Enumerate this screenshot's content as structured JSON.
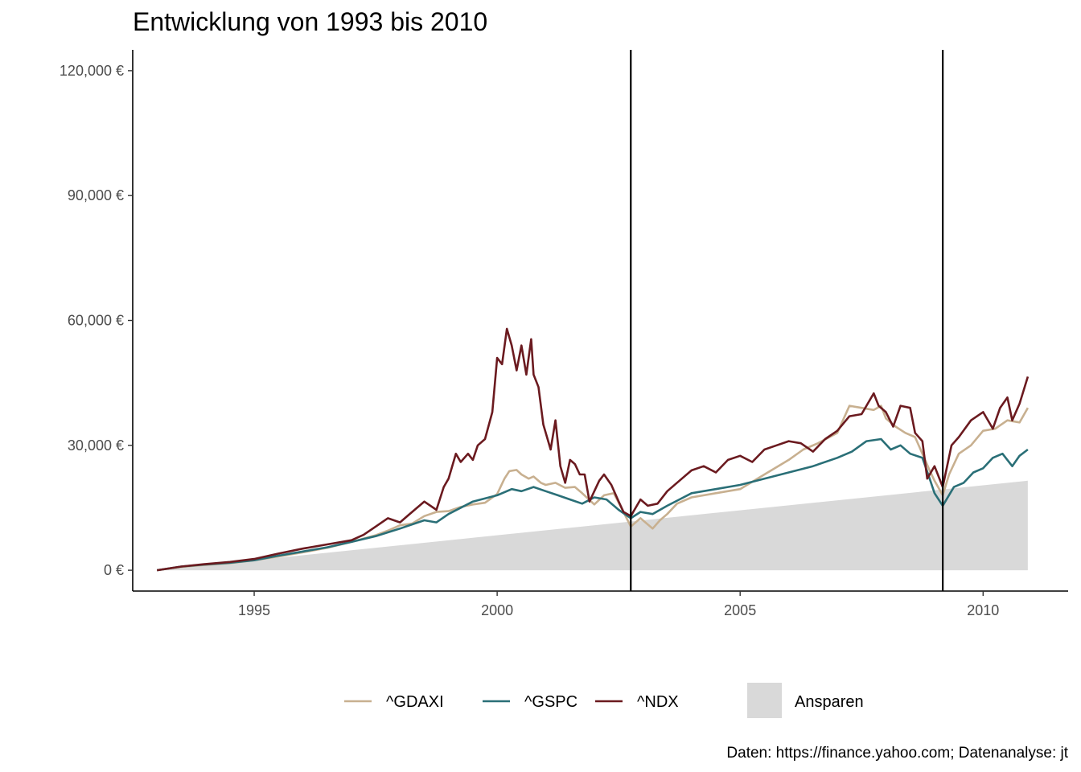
{
  "chart_data": {
    "type": "line",
    "title": "Entwicklung von 1993 bis 2010",
    "caption": "Daten: https://finance.yahoo.com; Datenanalyse: jt",
    "xlim": [
      1992.5,
      2011.75
    ],
    "ylim": [
      -5000,
      125000
    ],
    "x_ticks": [
      1995,
      2000,
      2005,
      2010
    ],
    "x_tick_labels": [
      "1995",
      "2000",
      "2005",
      "2010"
    ],
    "y_ticks": [
      0,
      30000,
      60000,
      90000,
      120000
    ],
    "y_tick_labels": [
      "0 €",
      "30,000 €",
      "60,000 €",
      "90,000 €",
      "120,000 €"
    ],
    "grid": false,
    "legend_position": "bottom",
    "vlines": [
      2002.75,
      2009.17
    ],
    "area": {
      "name": "Ansparen",
      "color": "#d9d9d9",
      "x": [
        1993.0,
        2010.92
      ],
      "y": [
        0,
        21500
      ]
    },
    "series": [
      {
        "name": "^GDAXI",
        "color": "#c8b090",
        "x": [
          1993.0,
          1993.5,
          1994.0,
          1994.5,
          1995.0,
          1995.5,
          1996.0,
          1996.5,
          1997.0,
          1997.5,
          1997.75,
          1998.0,
          1998.25,
          1998.5,
          1998.75,
          1999.0,
          1999.25,
          1999.5,
          1999.75,
          2000.0,
          2000.15,
          2000.25,
          2000.4,
          2000.5,
          2000.65,
          2000.75,
          2000.9,
          2001.0,
          2001.2,
          2001.4,
          2001.6,
          2001.75,
          2002.0,
          2002.2,
          2002.4,
          2002.6,
          2002.75,
          2002.95,
          2003.1,
          2003.2,
          2003.35,
          2003.5,
          2003.7,
          2004.0,
          2004.5,
          2005.0,
          2005.5,
          2006.0,
          2006.3,
          2006.6,
          2007.0,
          2007.25,
          2007.5,
          2007.75,
          2007.9,
          2008.0,
          2008.2,
          2008.4,
          2008.6,
          2008.75,
          2008.9,
          2009.0,
          2009.17,
          2009.3,
          2009.5,
          2009.75,
          2010.0,
          2010.25,
          2010.5,
          2010.75,
          2010.92
        ],
        "y": [
          0,
          800,
          1300,
          1700,
          2400,
          3300,
          4300,
          5400,
          6800,
          8400,
          9500,
          10800,
          11200,
          13000,
          14000,
          14200,
          15200,
          15800,
          16200,
          18300,
          22000,
          23800,
          24100,
          23000,
          22000,
          22500,
          21000,
          20500,
          21000,
          19800,
          20000,
          18500,
          15800,
          18000,
          18500,
          14000,
          10500,
          12500,
          11000,
          10000,
          12000,
          13500,
          16000,
          17500,
          18500,
          19500,
          23000,
          26500,
          29000,
          30500,
          33000,
          39500,
          39000,
          38500,
          39500,
          36500,
          34500,
          33000,
          32000,
          28000,
          24000,
          21500,
          18000,
          23000,
          28000,
          30000,
          33500,
          34000,
          36000,
          35500,
          39000
        ]
      },
      {
        "name": "^GSPC",
        "color": "#2a6f77",
        "x": [
          1993.0,
          1993.5,
          1994.0,
          1994.5,
          1995.0,
          1995.5,
          1996.0,
          1996.5,
          1997.0,
          1997.5,
          1998.0,
          1998.5,
          1998.75,
          1999.0,
          1999.5,
          2000.0,
          2000.3,
          2000.5,
          2000.75,
          2001.0,
          2001.25,
          2001.5,
          2001.75,
          2002.0,
          2002.25,
          2002.5,
          2002.75,
          2002.95,
          2003.2,
          2003.5,
          2003.75,
          2004.0,
          2004.5,
          2005.0,
          2005.5,
          2006.0,
          2006.5,
          2007.0,
          2007.3,
          2007.6,
          2007.9,
          2008.1,
          2008.3,
          2008.5,
          2008.75,
          2008.9,
          2009.0,
          2009.17,
          2009.4,
          2009.6,
          2009.8,
          2010.0,
          2010.2,
          2010.4,
          2010.6,
          2010.75,
          2010.92
        ],
        "y": [
          0,
          900,
          1400,
          1800,
          2400,
          3500,
          4500,
          5500,
          6800,
          8200,
          10000,
          12000,
          11500,
          13500,
          16500,
          18000,
          19500,
          19000,
          20000,
          19000,
          18000,
          17000,
          16000,
          17500,
          17000,
          14500,
          12500,
          14000,
          13500,
          15500,
          17000,
          18500,
          19500,
          20500,
          22000,
          23500,
          25000,
          27000,
          28500,
          31000,
          31500,
          29000,
          30000,
          28000,
          27000,
          22000,
          18500,
          15500,
          20000,
          21000,
          23500,
          24500,
          27000,
          28000,
          25000,
          27500,
          29000
        ]
      },
      {
        "name": "^NDX",
        "color": "#6b1a1f",
        "x": [
          1993.0,
          1993.5,
          1994.0,
          1994.5,
          1995.0,
          1995.5,
          1996.0,
          1996.5,
          1997.0,
          1997.25,
          1997.5,
          1997.75,
          1998.0,
          1998.25,
          1998.5,
          1998.75,
          1998.9,
          1999.0,
          1999.15,
          1999.25,
          1999.4,
          1999.5,
          1999.6,
          1999.75,
          1999.9,
          2000.0,
          2000.1,
          2000.2,
          2000.3,
          2000.4,
          2000.5,
          2000.6,
          2000.7,
          2000.75,
          2000.85,
          2000.95,
          2001.1,
          2001.2,
          2001.3,
          2001.4,
          2001.5,
          2001.6,
          2001.7,
          2001.8,
          2001.9,
          2002.1,
          2002.2,
          2002.35,
          2002.5,
          2002.6,
          2002.75,
          2002.95,
          2003.1,
          2003.3,
          2003.5,
          2003.75,
          2004.0,
          2004.25,
          2004.5,
          2004.75,
          2005.0,
          2005.25,
          2005.5,
          2005.75,
          2006.0,
          2006.25,
          2006.5,
          2006.75,
          2007.0,
          2007.25,
          2007.5,
          2007.75,
          2007.85,
          2008.0,
          2008.15,
          2008.3,
          2008.5,
          2008.6,
          2008.75,
          2008.85,
          2009.0,
          2009.17,
          2009.35,
          2009.5,
          2009.75,
          2010.0,
          2010.2,
          2010.35,
          2010.5,
          2010.6,
          2010.75,
          2010.92
        ],
        "y": [
          0,
          900,
          1500,
          2000,
          2700,
          4000,
          5200,
          6200,
          7200,
          8500,
          10500,
          12500,
          11500,
          14000,
          16500,
          14500,
          20000,
          22000,
          28000,
          26000,
          28000,
          26500,
          30000,
          31500,
          38000,
          51000,
          49500,
          58000,
          54000,
          48000,
          54000,
          47000,
          55500,
          47000,
          44000,
          35000,
          29000,
          36000,
          25000,
          21000,
          26500,
          25500,
          23000,
          23000,
          16500,
          21500,
          23000,
          20500,
          16500,
          14000,
          13000,
          17000,
          15500,
          16000,
          19000,
          21500,
          24000,
          25000,
          23500,
          26500,
          27500,
          26000,
          29000,
          30000,
          31000,
          30500,
          28500,
          31500,
          33500,
          37000,
          37500,
          42500,
          39500,
          38000,
          34500,
          39500,
          39000,
          33000,
          31000,
          22000,
          25000,
          20000,
          30000,
          32000,
          36000,
          38000,
          34000,
          39000,
          41500,
          36000,
          40000,
          46500
        ]
      }
    ]
  }
}
